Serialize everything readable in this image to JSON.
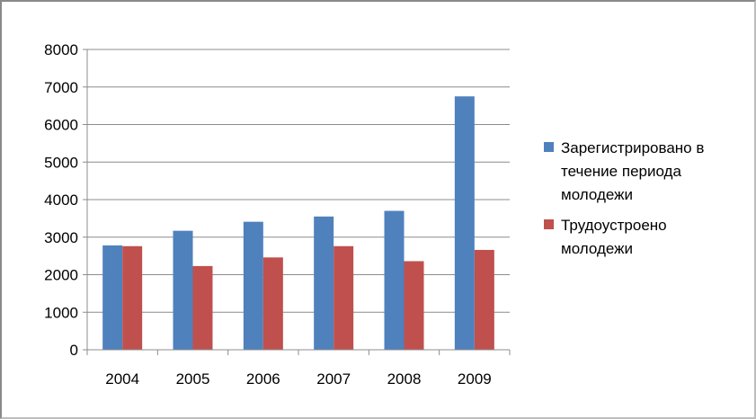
{
  "chart_data": {
    "type": "bar",
    "title": "",
    "xlabel": "",
    "ylabel": "",
    "categories": [
      "2004",
      "2005",
      "2006",
      "2007",
      "2008",
      "2009"
    ],
    "ylim": [
      0,
      8000
    ],
    "yticks": [
      "0",
      "1000",
      "2000",
      "3000",
      "4000",
      "5000",
      "6000",
      "7000",
      "8000"
    ],
    "grid": true,
    "legend_position": "right",
    "series": [
      {
        "name_lines": [
          "Зарегистрировано в",
          "течение периода",
          "молодежи"
        ],
        "color": "#4f81bd",
        "values": [
          2780,
          3170,
          3410,
          3550,
          3700,
          6750
        ]
      },
      {
        "name_lines": [
          "Трудоустроено",
          "молодежи"
        ],
        "color": "#c0504d",
        "values": [
          2760,
          2230,
          2460,
          2760,
          2360,
          2660
        ]
      }
    ]
  }
}
